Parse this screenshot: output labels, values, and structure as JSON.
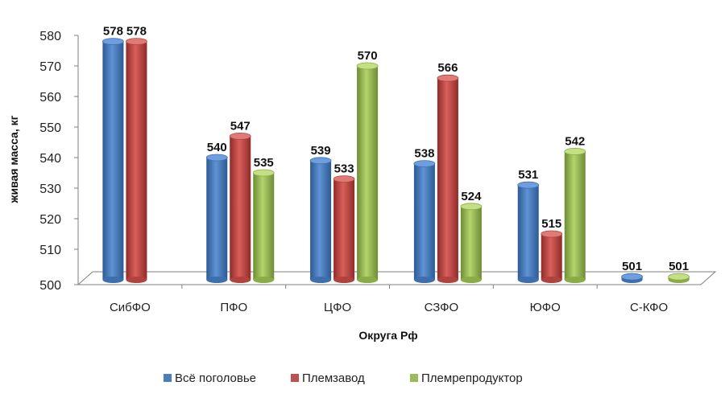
{
  "chart_data": {
    "type": "bar",
    "xlabel": "Округа Рф",
    "ylabel": "живая масса, кг",
    "ylim": [
      500,
      580
    ],
    "y_ticks": [
      "500",
      "510",
      "520",
      "530",
      "540",
      "550",
      "560",
      "570",
      "580"
    ],
    "categories": [
      "СибФО",
      "ПФО",
      "ЦФО",
      "СЗФО",
      "ЮФО",
      "С-КФО"
    ],
    "series": [
      {
        "name": "Всё поголовье",
        "color": "#4a7ebb",
        "values": [
          578,
          540,
          539,
          538,
          531,
          501
        ]
      },
      {
        "name": "Племзавод",
        "color": "#c0504d",
        "values": [
          578,
          547,
          533,
          566,
          515,
          null
        ]
      },
      {
        "name": "Племрепродуктор",
        "color": "#9bbb59",
        "values": [
          null,
          535,
          570,
          524,
          542,
          501
        ]
      }
    ],
    "legend_position": "bottom",
    "grid": false
  }
}
